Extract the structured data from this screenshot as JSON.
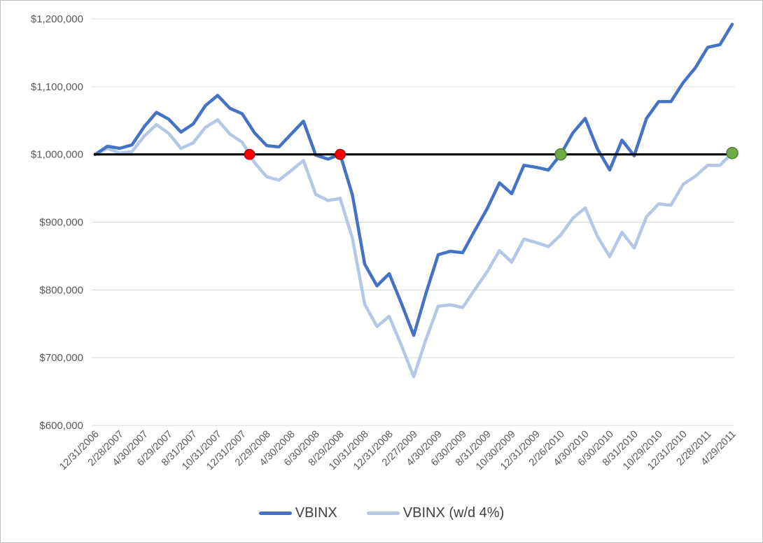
{
  "figure": {
    "background": "#FFFFFF",
    "border_color": "#BFBFBF"
  },
  "chart_data": {
    "type": "line",
    "title": "",
    "y_axis": {
      "min": 600000,
      "max": 1200000,
      "step": 100000,
      "tick_labels": [
        "$1,200,000",
        "$1,100,000",
        "$1,000,000",
        "$900,000",
        "$800,000",
        "$700,000",
        "$600,000"
      ],
      "tick_values": [
        1200000,
        1100000,
        1000000,
        900000,
        800000,
        700000,
        600000
      ],
      "gridline_color": "#D9D9D9",
      "label_color": "#595959",
      "grid": true
    },
    "x_axis": {
      "tick_labels": [
        "12/31/2006",
        "2/28/2007",
        "4/30/2007",
        "6/29/2007",
        "8/31/2007",
        "10/31/2007",
        "12/31/2007",
        "2/29/2008",
        "4/30/2008",
        "6/30/2008",
        "8/29/2008",
        "10/31/2008",
        "12/31/2008",
        "2/27/2009",
        "4/30/2009",
        "6/30/2009",
        "8/31/2009",
        "10/30/2009",
        "12/31/2009",
        "2/26/2010",
        "4/30/2010",
        "6/30/2010",
        "8/31/2010",
        "10/29/2010",
        "12/31/2010",
        "2/28/2011",
        "4/29/2011"
      ],
      "months_per_tick": 2,
      "label_color": "#595959",
      "label_rotation_deg": -45
    },
    "baseline": {
      "value": 1000000,
      "color": "#000000"
    },
    "series": [
      {
        "name": "VBINX",
        "color": "#4472C4",
        "values": [
          1000000,
          1012000,
          1009000,
          1014000,
          1041000,
          1062000,
          1052000,
          1033000,
          1045000,
          1072000,
          1087000,
          1068000,
          1060000,
          1032000,
          1013000,
          1011000,
          1030000,
          1049000,
          999000,
          993000,
          1000000,
          940000,
          838000,
          806000,
          824000,
          780000,
          733000,
          795000,
          852000,
          857000,
          855000,
          888000,
          920000,
          958000,
          942000,
          984000,
          981000,
          977000,
          1000000,
          1032000,
          1053000,
          1008000,
          977000,
          1021000,
          998000,
          1053000,
          1078000,
          1078000,
          1106000,
          1128000,
          1158000,
          1162000,
          1192000
        ]
      },
      {
        "name": "VBINX (w/d 4%)",
        "color": "#B4C7E7",
        "values": [
          1000000,
          1009000,
          1002000,
          1004000,
          1027000,
          1044000,
          1031000,
          1009000,
          1017000,
          1040000,
          1051000,
          1030000,
          1018000,
          988000,
          967000,
          962000,
          976000,
          991000,
          941000,
          932000,
          935000,
          876000,
          779000,
          746000,
          761000,
          718000,
          672000,
          727000,
          776000,
          778000,
          774000,
          801000,
          827000,
          858000,
          841000,
          875000,
          870000,
          864000,
          881000,
          906000,
          921000,
          879000,
          849000,
          885000,
          862000,
          908000,
          927000,
          925000,
          956000,
          968000,
          984000,
          984000,
          1002000
        ]
      }
    ],
    "markers": [
      {
        "kind": "red",
        "series": 1,
        "index": 12.6,
        "value": 1000000,
        "fill": "#FF0000",
        "stroke": "#B00000"
      },
      {
        "kind": "red",
        "series": 0,
        "index": 20,
        "value": 1000000,
        "fill": "#FF0000",
        "stroke": "#B00000"
      },
      {
        "kind": "green",
        "series": 0,
        "index": 38,
        "value": 1000000,
        "fill": "#70AD47",
        "stroke": "#507E32"
      },
      {
        "kind": "green",
        "series": 1,
        "index": 52,
        "value": 1002000,
        "fill": "#70AD47",
        "stroke": "#507E32"
      }
    ],
    "legend": {
      "position": "bottom",
      "entries": [
        {
          "label": "VBINX",
          "color": "#4472C4"
        },
        {
          "label": "VBINX (w/d 4%)",
          "color": "#B4C7E7"
        }
      ]
    }
  }
}
